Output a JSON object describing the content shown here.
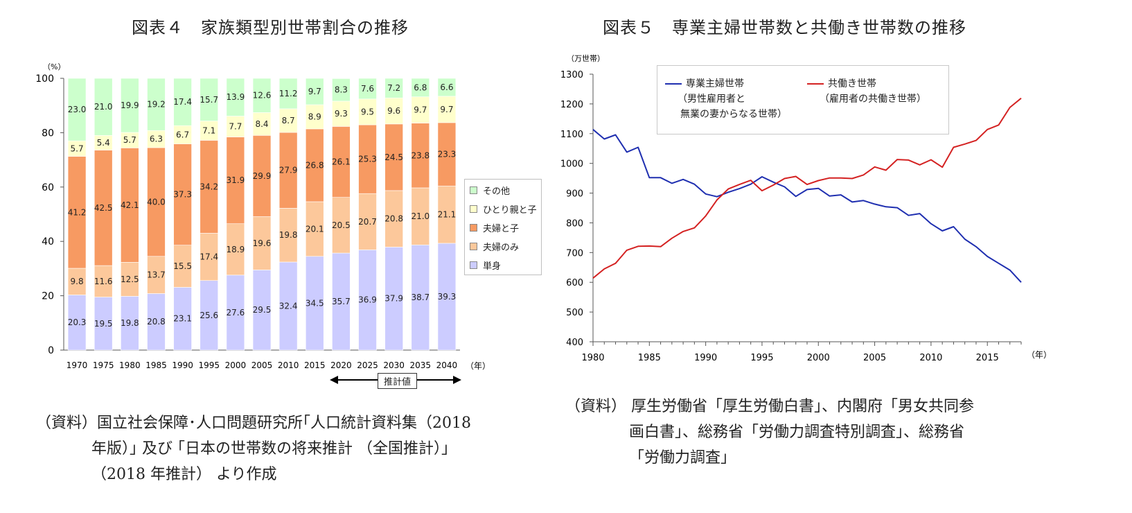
{
  "left": {
    "title": "図表４　家族類型別世帯割合の推移",
    "y_unit": "（%）",
    "x_unit": "（年）",
    "estimate_label": "推計値",
    "source_lines": [
      "（資料）国立社会保障･人口問題研究所｢人口統計資料集（2018",
      "年版）｣ 及び ｢日本の世帯数の将来推計 （全国推計）｣",
      "（2018 年推計） より作成"
    ]
  },
  "right": {
    "title": "図表５　専業主婦世帯数と共働き世帯数の推移",
    "y_unit": "（万世帯）",
    "x_unit": "（年）",
    "legend": {
      "series1_name": "専業主婦世帯",
      "series1_note1": "（男性雇用者と",
      "series1_note2": "無業の妻からなる世帯）",
      "series2_name": "共働き世帯",
      "series2_note": "（雇用者の共働き世帯）"
    },
    "source_lines": [
      "（資料） 厚生労働省「厚生労働白書」、内閣府「男女共同参",
      "画白書」、総務省「労働力調査特別調査」、総務省",
      "「労働力調査」"
    ]
  },
  "chart_data": [
    {
      "type": "bar",
      "stacked": true,
      "categories": [
        "1970",
        "1975",
        "1980",
        "1985",
        "1990",
        "1995",
        "2000",
        "2005",
        "2010",
        "2015",
        "2020",
        "2025",
        "2030",
        "2035",
        "2040"
      ],
      "ylim": [
        0,
        100
      ],
      "yticks": [
        0,
        20,
        40,
        60,
        80,
        100
      ],
      "series": [
        {
          "name": "単身",
          "color": "#ccccff",
          "values": [
            20.3,
            19.5,
            19.8,
            20.8,
            23.1,
            25.6,
            27.6,
            29.5,
            32.4,
            34.5,
            35.7,
            36.9,
            37.9,
            38.7,
            39.3
          ]
        },
        {
          "name": "夫婦のみ",
          "color": "#fcc89b",
          "values": [
            9.8,
            11.6,
            12.5,
            13.7,
            15.5,
            17.4,
            18.9,
            19.6,
            19.8,
            20.1,
            20.5,
            20.7,
            20.8,
            21.0,
            21.1
          ]
        },
        {
          "name": "夫婦と子",
          "color": "#f79a62",
          "values": [
            41.2,
            42.5,
            42.1,
            40.0,
            37.3,
            34.2,
            31.9,
            29.9,
            27.9,
            26.8,
            26.1,
            25.3,
            24.5,
            23.8,
            23.3
          ]
        },
        {
          "name": "ひとり親と子",
          "color": "#ffffcc",
          "values": [
            5.7,
            5.4,
            5.7,
            6.3,
            6.7,
            7.1,
            7.7,
            8.4,
            8.7,
            8.9,
            9.3,
            9.5,
            9.6,
            9.7,
            9.7
          ]
        },
        {
          "name": "その他",
          "color": "#ccffcc",
          "values": [
            23.0,
            21.0,
            19.9,
            19.2,
            17.4,
            15.7,
            13.9,
            12.6,
            11.2,
            9.7,
            8.3,
            7.6,
            7.2,
            6.8,
            6.6
          ]
        }
      ],
      "legend_order": [
        "その他",
        "ひとり親と子",
        "夫婦と子",
        "夫婦のみ",
        "単身"
      ],
      "legend_position": "right"
    },
    {
      "type": "line",
      "x": [
        1980,
        1981,
        1982,
        1983,
        1984,
        1985,
        1986,
        1987,
        1988,
        1989,
        1990,
        1991,
        1992,
        1993,
        1994,
        1995,
        1996,
        1997,
        1998,
        1999,
        2000,
        2001,
        2002,
        2003,
        2004,
        2005,
        2006,
        2007,
        2008,
        2009,
        2010,
        2011,
        2012,
        2013,
        2014,
        2015,
        2016,
        2017,
        2018
      ],
      "xticks": [
        1980,
        1985,
        1990,
        1995,
        2000,
        2005,
        2010,
        2015
      ],
      "ylim": [
        400,
        1300
      ],
      "yticks": [
        400,
        500,
        600,
        700,
        800,
        900,
        1000,
        1100,
        1200,
        1300
      ],
      "series": [
        {
          "name": "専業主婦世帯",
          "color": "#1f2fb0",
          "values": [
            1114,
            1082,
            1096,
            1038,
            1054,
            952,
            952,
            933,
            946,
            930,
            897,
            888,
            903,
            915,
            930,
            955,
            937,
            921,
            889,
            912,
            916,
            890,
            894,
            870,
            875,
            863,
            854,
            851,
            825,
            831,
            797,
            773,
            787,
            745,
            720,
            687,
            664,
            641,
            600
          ]
        },
        {
          "name": "共働き世帯",
          "color": "#d42222",
          "values": [
            614,
            645,
            664,
            708,
            721,
            722,
            720,
            748,
            771,
            783,
            823,
            877,
            914,
            929,
            943,
            908,
            927,
            949,
            956,
            929,
            942,
            951,
            951,
            949,
            961,
            988,
            977,
            1013,
            1011,
            995,
            1012,
            987,
            1054,
            1065,
            1077,
            1114,
            1129,
            1188,
            1219
          ]
        }
      ],
      "legend_position": "top"
    }
  ]
}
